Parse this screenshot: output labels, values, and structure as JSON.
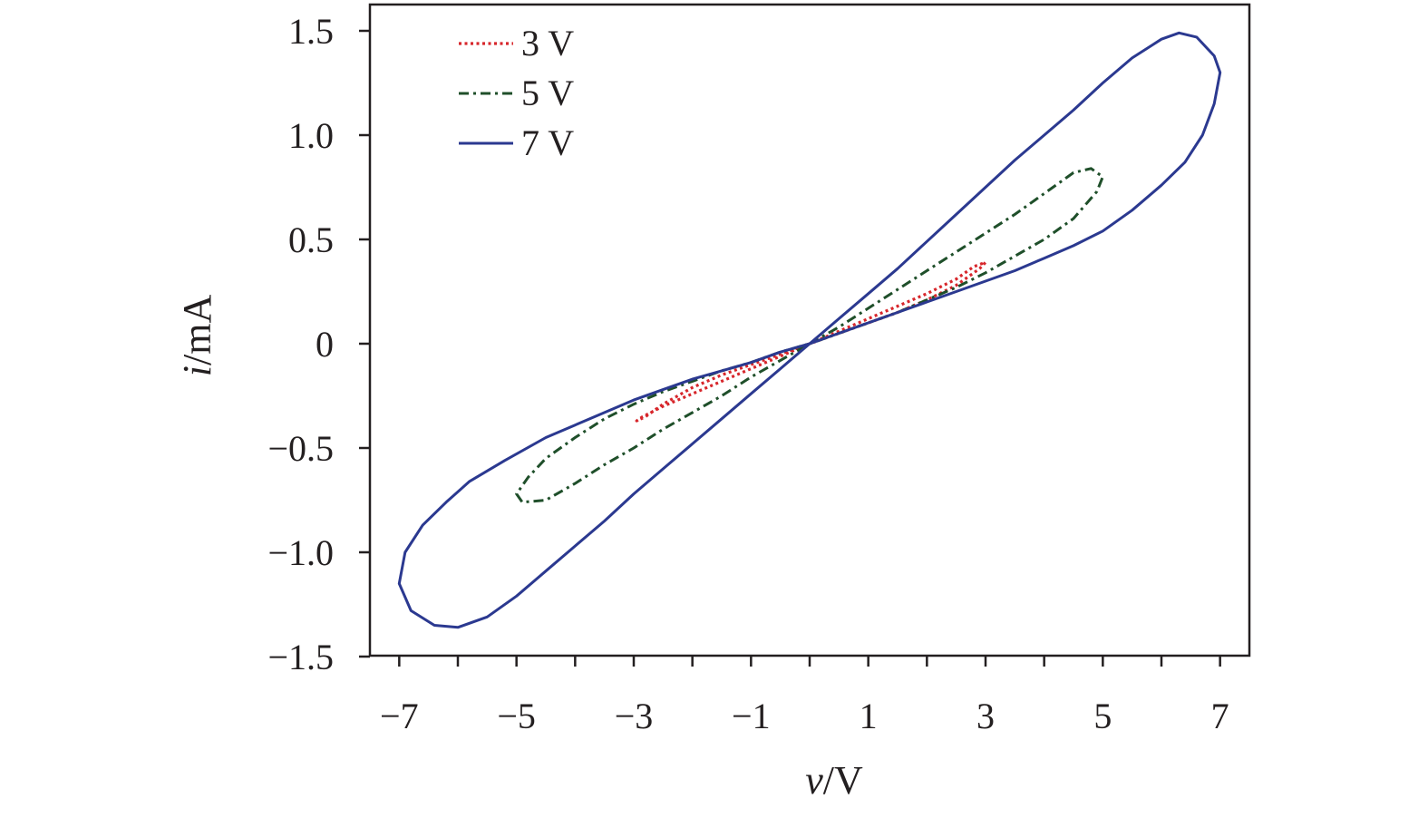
{
  "chart_data": {
    "type": "line",
    "xlabel": {
      "var": "v",
      "unit": "/V"
    },
    "ylabel": {
      "var": "i",
      "unit": "/mA"
    },
    "xlim": [
      -7.5,
      7.5
    ],
    "ylim": [
      -1.5,
      1.5
    ],
    "xticks": [
      -7,
      -6,
      -5,
      -4,
      -3,
      -2,
      -1,
      0,
      1,
      2,
      3,
      4,
      5,
      6,
      7
    ],
    "xtick_labels": [
      {
        "value": -7,
        "label": "−7"
      },
      {
        "value": -5,
        "label": "−5"
      },
      {
        "value": -3,
        "label": "−3"
      },
      {
        "value": -1,
        "label": "−1"
      },
      {
        "value": 1,
        "label": "1"
      },
      {
        "value": 3,
        "label": "3"
      },
      {
        "value": 5,
        "label": "5"
      },
      {
        "value": 7,
        "label": "7"
      }
    ],
    "yticks": [
      {
        "value": 1.5,
        "label": "1.5"
      },
      {
        "value": 1.0,
        "label": "1.0"
      },
      {
        "value": 0.5,
        "label": "0.5"
      },
      {
        "value": 0,
        "label": "0"
      },
      {
        "value": -0.5,
        "label": "−0.5"
      },
      {
        "value": -1.0,
        "label": "−1.0"
      },
      {
        "value": -1.5,
        "label": "−1.5"
      }
    ],
    "grid": false,
    "legend_position": "top-left",
    "series": [
      {
        "name": "3 V",
        "color": "#d7262b",
        "style": "dotted",
        "points": [
          [
            0,
            0
          ],
          [
            0.5,
            0.06
          ],
          [
            1,
            0.12
          ],
          [
            1.5,
            0.18
          ],
          [
            2,
            0.24
          ],
          [
            2.5,
            0.31
          ],
          [
            2.8,
            0.37
          ],
          [
            3,
            0.39
          ],
          [
            2.9,
            0.36
          ],
          [
            2.5,
            0.28
          ],
          [
            2,
            0.21
          ],
          [
            1.5,
            0.15
          ],
          [
            1,
            0.1
          ],
          [
            0.5,
            0.05
          ],
          [
            0,
            0
          ],
          [
            -0.5,
            -0.06
          ],
          [
            -1,
            -0.12
          ],
          [
            -1.5,
            -0.18
          ],
          [
            -2,
            -0.24
          ],
          [
            -2.5,
            -0.3
          ],
          [
            -2.85,
            -0.35
          ],
          [
            -2.95,
            -0.37
          ],
          [
            -2.8,
            -0.35
          ],
          [
            -2.5,
            -0.29
          ],
          [
            -2,
            -0.21
          ],
          [
            -1.5,
            -0.15
          ],
          [
            -1,
            -0.1
          ],
          [
            -0.5,
            -0.05
          ],
          [
            0,
            0
          ]
        ]
      },
      {
        "name": "5 V",
        "color": "#1f4f2a",
        "style": "dashdot",
        "points": [
          [
            0,
            0
          ],
          [
            0.5,
            0.08
          ],
          [
            1,
            0.17
          ],
          [
            1.5,
            0.26
          ],
          [
            2,
            0.35
          ],
          [
            2.5,
            0.44
          ],
          [
            3,
            0.53
          ],
          [
            3.5,
            0.62
          ],
          [
            4,
            0.72
          ],
          [
            4.5,
            0.82
          ],
          [
            4.8,
            0.84
          ],
          [
            5,
            0.8
          ],
          [
            4.9,
            0.73
          ],
          [
            4.5,
            0.6
          ],
          [
            4,
            0.5
          ],
          [
            3.5,
            0.42
          ],
          [
            3,
            0.34
          ],
          [
            2.5,
            0.27
          ],
          [
            2,
            0.21
          ],
          [
            1.5,
            0.15
          ],
          [
            1,
            0.1
          ],
          [
            0.5,
            0.05
          ],
          [
            0,
            0
          ],
          [
            -0.5,
            -0.08
          ],
          [
            -1,
            -0.16
          ],
          [
            -1.5,
            -0.25
          ],
          [
            -2,
            -0.33
          ],
          [
            -2.5,
            -0.41
          ],
          [
            -3,
            -0.5
          ],
          [
            -3.5,
            -0.58
          ],
          [
            -4,
            -0.67
          ],
          [
            -4.5,
            -0.75
          ],
          [
            -4.9,
            -0.76
          ],
          [
            -5,
            -0.72
          ],
          [
            -4.8,
            -0.64
          ],
          [
            -4.5,
            -0.55
          ],
          [
            -4,
            -0.45
          ],
          [
            -3.5,
            -0.36
          ],
          [
            -3,
            -0.29
          ],
          [
            -2.5,
            -0.23
          ],
          [
            -2,
            -0.18
          ],
          [
            -1.5,
            -0.13
          ],
          [
            -1,
            -0.09
          ],
          [
            -0.5,
            -0.04
          ],
          [
            0,
            0
          ]
        ]
      },
      {
        "name": "7 V",
        "color": "#2b3990",
        "style": "solid",
        "points": [
          [
            0,
            0
          ],
          [
            0.5,
            0.12
          ],
          [
            1,
            0.24
          ],
          [
            1.5,
            0.36
          ],
          [
            2,
            0.49
          ],
          [
            2.5,
            0.62
          ],
          [
            3,
            0.75
          ],
          [
            3.5,
            0.88
          ],
          [
            4,
            1.0
          ],
          [
            4.5,
            1.12
          ],
          [
            5,
            1.25
          ],
          [
            5.5,
            1.37
          ],
          [
            6,
            1.46
          ],
          [
            6.3,
            1.49
          ],
          [
            6.6,
            1.47
          ],
          [
            6.9,
            1.38
          ],
          [
            7,
            1.3
          ],
          [
            6.9,
            1.15
          ],
          [
            6.7,
            1.0
          ],
          [
            6.4,
            0.87
          ],
          [
            6,
            0.76
          ],
          [
            5.5,
            0.64
          ],
          [
            5,
            0.54
          ],
          [
            4.5,
            0.47
          ],
          [
            4,
            0.41
          ],
          [
            3.5,
            0.35
          ],
          [
            3,
            0.3
          ],
          [
            2.5,
            0.25
          ],
          [
            2,
            0.2
          ],
          [
            1.5,
            0.15
          ],
          [
            1,
            0.1
          ],
          [
            0.5,
            0.05
          ],
          [
            0,
            0
          ],
          [
            -0.5,
            -0.12
          ],
          [
            -1,
            -0.24
          ],
          [
            -1.5,
            -0.36
          ],
          [
            -2,
            -0.48
          ],
          [
            -2.5,
            -0.6
          ],
          [
            -3,
            -0.72
          ],
          [
            -3.5,
            -0.85
          ],
          [
            -4,
            -0.97
          ],
          [
            -4.5,
            -1.09
          ],
          [
            -5,
            -1.21
          ],
          [
            -5.5,
            -1.31
          ],
          [
            -6,
            -1.36
          ],
          [
            -6.4,
            -1.35
          ],
          [
            -6.8,
            -1.28
          ],
          [
            -7,
            -1.15
          ],
          [
            -6.9,
            -1.0
          ],
          [
            -6.6,
            -0.87
          ],
          [
            -6.2,
            -0.76
          ],
          [
            -5.8,
            -0.66
          ],
          [
            -5.2,
            -0.56
          ],
          [
            -4.5,
            -0.45
          ],
          [
            -4,
            -0.39
          ],
          [
            -3.5,
            -0.33
          ],
          [
            -3,
            -0.27
          ],
          [
            -2.5,
            -0.22
          ],
          [
            -2,
            -0.17
          ],
          [
            -1.5,
            -0.13
          ],
          [
            -1,
            -0.09
          ],
          [
            -0.5,
            -0.04
          ],
          [
            0,
            0
          ]
        ]
      }
    ]
  }
}
